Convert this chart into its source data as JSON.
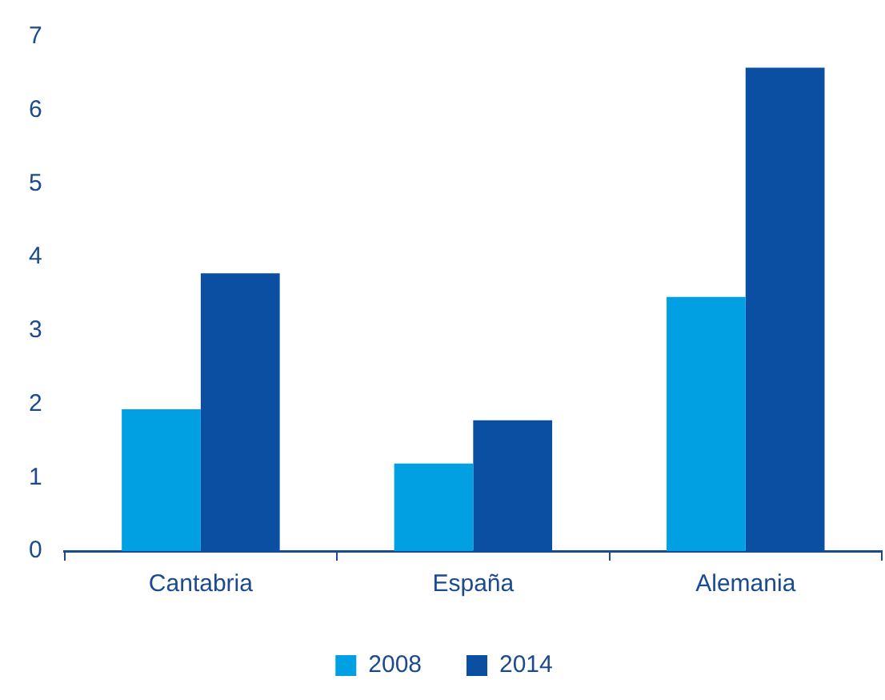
{
  "chart_data": {
    "type": "bar",
    "categories": [
      "Cantabria",
      "España",
      "Alemania"
    ],
    "series": [
      {
        "name": "2008",
        "color": "#00a0e3",
        "values": [
          1.93,
          1.19,
          3.46
        ]
      },
      {
        "name": "2014",
        "color": "#0b4fa3",
        "values": [
          3.78,
          1.78,
          6.58
        ]
      }
    ],
    "ylim": [
      0,
      7
    ],
    "yticks": [
      0,
      1,
      2,
      3,
      4,
      5,
      6,
      7
    ],
    "grid": false,
    "legend": "bottom"
  }
}
